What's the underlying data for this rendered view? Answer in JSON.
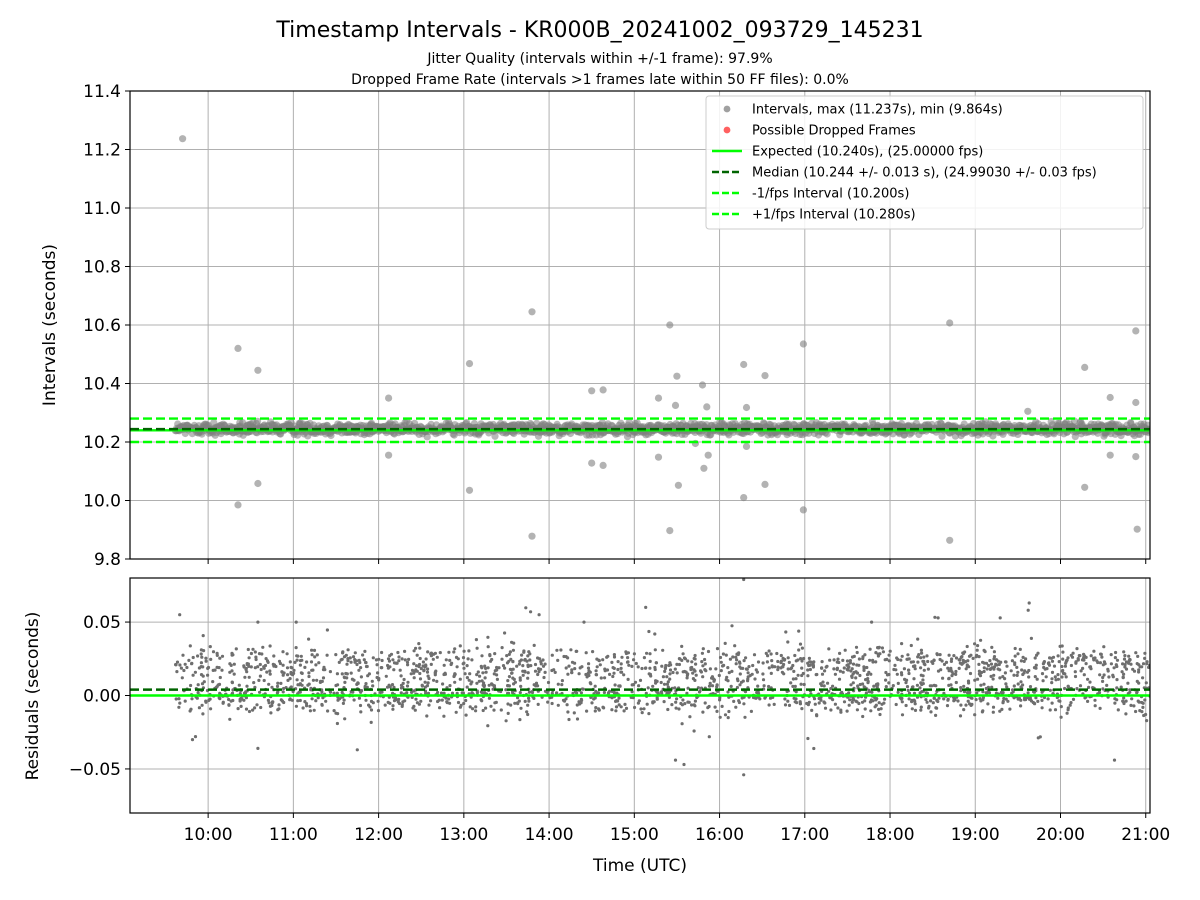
{
  "title": "Timestamp Intervals - KR000B_20241002_093729_145231",
  "subtitle_1": "Jitter Quality (intervals within +/-1 frame): 97.9%",
  "subtitle_2": "Dropped Frame Rate (intervals >1 frames late within 50 FF files): 0.0%",
  "colors": {
    "points": "#808080",
    "dropped": "#ff3c3c",
    "expected": "#00ff00",
    "median": "#006400",
    "interval_bounds": "#00ff00",
    "grid": "#b0b0b0"
  },
  "chart_data": [
    {
      "type": "scatter",
      "name": "intervals",
      "ylabel": "Intervals (seconds)",
      "ylim": [
        9.8,
        11.4
      ],
      "yticks": [
        "9.8",
        "10.0",
        "10.2",
        "10.4",
        "10.6",
        "10.8",
        "11.0",
        "11.2",
        "11.4"
      ],
      "xlim": [
        "09:05",
        "21:03"
      ],
      "grid": true,
      "legend_position": "top-right",
      "legend": [
        {
          "label": "Intervals, max (11.237s), min (9.864s)",
          "kind": "marker",
          "color": "#a0a0a0"
        },
        {
          "label": "Possible Dropped Frames",
          "kind": "marker",
          "color": "#ff6060"
        },
        {
          "label": "Expected (10.240s), (25.00000 fps)",
          "kind": "line",
          "color": "#00ff00",
          "dash": false
        },
        {
          "label": "Median (10.244 +/- 0.013 s), (24.99030 +/- 0.03 fps)",
          "kind": "line",
          "color": "#006400",
          "dash": true
        },
        {
          "label": "-1/fps Interval (10.200s)",
          "kind": "line",
          "color": "#00ff00",
          "dash": true
        },
        {
          "label": "+1/fps Interval (10.280s)",
          "kind": "line",
          "color": "#00ff00",
          "dash": true
        }
      ],
      "reference_lines": {
        "expected": 10.24,
        "median": 10.244,
        "lower": 10.2,
        "upper": 10.28
      },
      "band": {
        "start": "09:37",
        "end": "21:03",
        "center": 10.245,
        "half_width": 0.03
      },
      "outliers": [
        {
          "x": "09:42",
          "y": 11.237
        },
        {
          "x": "10:21",
          "y": 10.52
        },
        {
          "x": "10:21",
          "y": 9.985
        },
        {
          "x": "10:35",
          "y": 10.445
        },
        {
          "x": "10:35",
          "y": 10.058
        },
        {
          "x": "12:07",
          "y": 10.35
        },
        {
          "x": "12:07",
          "y": 10.155
        },
        {
          "x": "13:04",
          "y": 10.468
        },
        {
          "x": "13:04",
          "y": 10.035
        },
        {
          "x": "13:48",
          "y": 10.645
        },
        {
          "x": "13:48",
          "y": 9.878
        },
        {
          "x": "14:30",
          "y": 10.375
        },
        {
          "x": "14:30",
          "y": 10.128
        },
        {
          "x": "14:38",
          "y": 10.378
        },
        {
          "x": "14:38",
          "y": 10.12
        },
        {
          "x": "15:17",
          "y": 10.35
        },
        {
          "x": "15:17",
          "y": 10.148
        },
        {
          "x": "15:25",
          "y": 10.6
        },
        {
          "x": "15:25",
          "y": 9.897
        },
        {
          "x": "15:29",
          "y": 10.325
        },
        {
          "x": "15:30",
          "y": 10.425
        },
        {
          "x": "15:31",
          "y": 10.052
        },
        {
          "x": "15:43",
          "y": 10.195
        },
        {
          "x": "15:48",
          "y": 10.395
        },
        {
          "x": "15:49",
          "y": 10.11
        },
        {
          "x": "15:51",
          "y": 10.32
        },
        {
          "x": "15:52",
          "y": 10.155
        },
        {
          "x": "16:17",
          "y": 10.465
        },
        {
          "x": "16:17",
          "y": 10.01
        },
        {
          "x": "16:19",
          "y": 10.318
        },
        {
          "x": "16:19",
          "y": 10.185
        },
        {
          "x": "16:32",
          "y": 10.427
        },
        {
          "x": "16:32",
          "y": 10.055
        },
        {
          "x": "16:59",
          "y": 10.535
        },
        {
          "x": "16:59",
          "y": 9.968
        },
        {
          "x": "18:42",
          "y": 10.607
        },
        {
          "x": "18:42",
          "y": 9.864
        },
        {
          "x": "19:37",
          "y": 10.305
        },
        {
          "x": "20:17",
          "y": 10.455
        },
        {
          "x": "20:17",
          "y": 10.045
        },
        {
          "x": "20:35",
          "y": 10.352
        },
        {
          "x": "20:35",
          "y": 10.155
        },
        {
          "x": "20:53",
          "y": 10.58
        },
        {
          "x": "20:53",
          "y": 10.335
        },
        {
          "x": "20:53",
          "y": 10.15
        },
        {
          "x": "20:54",
          "y": 9.902
        }
      ]
    },
    {
      "type": "scatter",
      "name": "residuals",
      "ylabel": "Residuals (seconds)",
      "xlabel": "Time (UTC)",
      "ylim": [
        -0.08,
        0.08
      ],
      "yticks": [
        "−0.05",
        "0.00",
        "0.05"
      ],
      "xticks": [
        "10:00",
        "11:00",
        "12:00",
        "13:00",
        "14:00",
        "15:00",
        "16:00",
        "17:00",
        "18:00",
        "19:00",
        "20:00",
        "21:00"
      ],
      "xlim": [
        "09:05",
        "21:03"
      ],
      "grid": true,
      "reference_lines": {
        "expected": 0.0,
        "median": 0.004
      },
      "clusters": {
        "start": "09:37",
        "end": "21:03",
        "upper_center": 0.021,
        "lower_center": 0.0,
        "spread": 0.006
      },
      "outliers": [
        {
          "x": "09:40",
          "y": 0.055
        },
        {
          "x": "09:49",
          "y": -0.03
        },
        {
          "x": "10:35",
          "y": 0.05
        },
        {
          "x": "10:35",
          "y": -0.036
        },
        {
          "x": "11:02",
          "y": 0.05
        },
        {
          "x": "11:45",
          "y": -0.037
        },
        {
          "x": "13:47",
          "y": 0.057
        },
        {
          "x": "13:53",
          "y": 0.055
        },
        {
          "x": "15:08",
          "y": 0.06
        },
        {
          "x": "15:29",
          "y": -0.044
        },
        {
          "x": "15:35",
          "y": -0.047
        },
        {
          "x": "16:00",
          "y": 0.081
        },
        {
          "x": "16:17",
          "y": 0.079
        },
        {
          "x": "16:17",
          "y": -0.054
        },
        {
          "x": "17:47",
          "y": 0.05
        },
        {
          "x": "19:38",
          "y": 0.063
        },
        {
          "x": "20:38",
          "y": -0.044
        }
      ]
    }
  ]
}
